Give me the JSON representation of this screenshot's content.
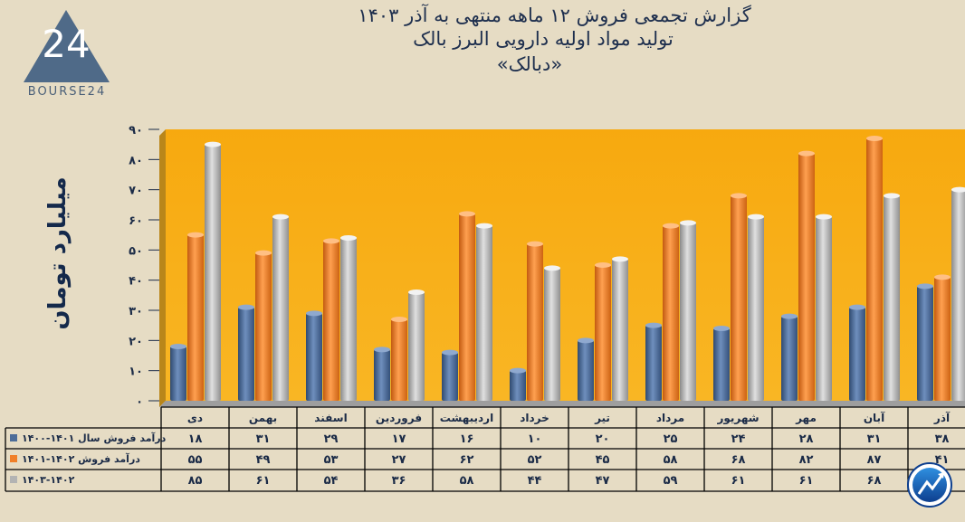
{
  "header": {
    "line1": "گزارش تجمعی فروش ۱۲ ماهه منتهی به آذر ۱۴۰۳",
    "line2": "تولید مواد اولیه دارویی البرز بالک",
    "line3": "«دبالک»"
  },
  "logo": {
    "mark": "24",
    "text": "BOURSE24"
  },
  "colors": {
    "background": "#e6dcc4",
    "plot": "#f8ae18",
    "series1": "#4d6d99",
    "series2": "#f07f28",
    "series3": "#b3b3b3",
    "table_border": "#000000"
  },
  "chart_data": {
    "type": "bar",
    "ylabel": "میلیارد تومان",
    "ylim": [
      0,
      90
    ],
    "yticks": [
      "۰",
      "۱۰",
      "۲۰",
      "۳۰",
      "۴۰",
      "۵۰",
      "۶۰",
      "۷۰",
      "۸۰",
      "۹۰"
    ],
    "grid": false,
    "legend": "table-left",
    "categories": [
      "دی",
      "بهمن",
      "اسفند",
      "فروردین",
      "اردیبهشت",
      "خرداد",
      "تیر",
      "مرداد",
      "شهریور",
      "مهر",
      "آبان",
      "آذر"
    ],
    "series": [
      {
        "name": "درآمد فروش سال ۱۴۰۱-۱۴۰۰",
        "values": [
          18,
          31,
          29,
          17,
          16,
          10,
          20,
          25,
          24,
          28,
          31,
          38
        ],
        "labels": [
          "۱۸",
          "۳۱",
          "۲۹",
          "۱۷",
          "۱۶",
          "۱۰",
          "۲۰",
          "۲۵",
          "۲۴",
          "۲۸",
          "۳۱",
          "۳۸"
        ]
      },
      {
        "name": "درآمد فروش ۱۴۰۲-۱۴۰۱",
        "values": [
          55,
          49,
          53,
          27,
          62,
          52,
          45,
          58,
          68,
          82,
          87,
          41
        ],
        "labels": [
          "۵۵",
          "۴۹",
          "۵۳",
          "۲۷",
          "۶۲",
          "۵۲",
          "۴۵",
          "۵۸",
          "۶۸",
          "۸۲",
          "۸۷",
          "۴۱"
        ]
      },
      {
        "name": "۱۴۰۳-۱۴۰۲",
        "values": [
          85,
          61,
          54,
          36,
          58,
          44,
          47,
          59,
          61,
          61,
          68,
          70
        ],
        "labels": [
          "۸۵",
          "۶۱",
          "۵۴",
          "۳۶",
          "۵۸",
          "۴۴",
          "۴۷",
          "۵۹",
          "۶۱",
          "۶۱",
          "۶۸",
          ""
        ]
      }
    ]
  }
}
